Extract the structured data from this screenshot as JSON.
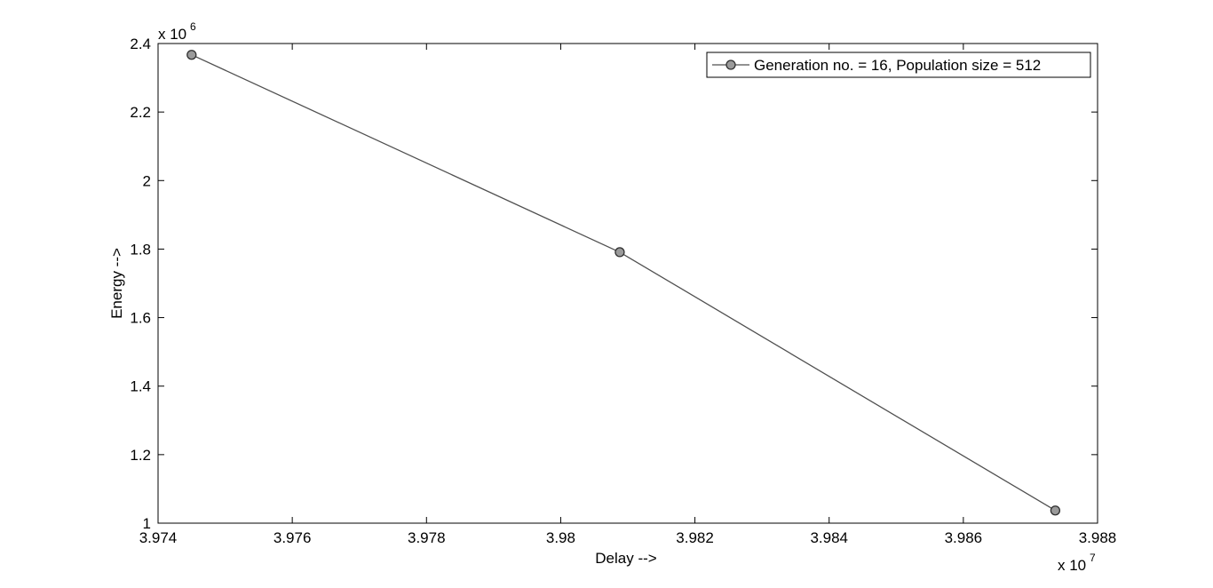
{
  "chart_data": {
    "type": "line",
    "xlabel": "Delay -->",
    "ylabel": "Energy -->",
    "x_multiplier": {
      "base": "x 10",
      "exponent": "7"
    },
    "y_multiplier": {
      "base": "x 10",
      "exponent": "6"
    },
    "xlim": [
      3.974,
      3.988
    ],
    "ylim": [
      1.0,
      2.4
    ],
    "x_ticks": [
      3.974,
      3.976,
      3.978,
      3.98,
      3.982,
      3.984,
      3.986,
      3.988
    ],
    "x_tick_labels": [
      "3.974",
      "3.976",
      "3.978",
      "3.98",
      "3.982",
      "3.984",
      "3.986",
      "3.988"
    ],
    "y_ticks": [
      1.0,
      1.2,
      1.4,
      1.6,
      1.8,
      2.0,
      2.2,
      2.4
    ],
    "y_tick_labels": [
      "1",
      "1.2",
      "1.4",
      "1.6",
      "1.8",
      "2",
      "2.2",
      "2.4"
    ],
    "grid": false,
    "legend_position": "top-right",
    "series": [
      {
        "name": "Generation no. = 16, Population size = 512",
        "color": "#505050",
        "marker": "circle",
        "marker_fill": "#9a9a9a",
        "x": [
          3.9745,
          3.98088,
          3.98737
        ],
        "y": [
          2.367,
          1.791,
          1.037
        ]
      }
    ]
  }
}
